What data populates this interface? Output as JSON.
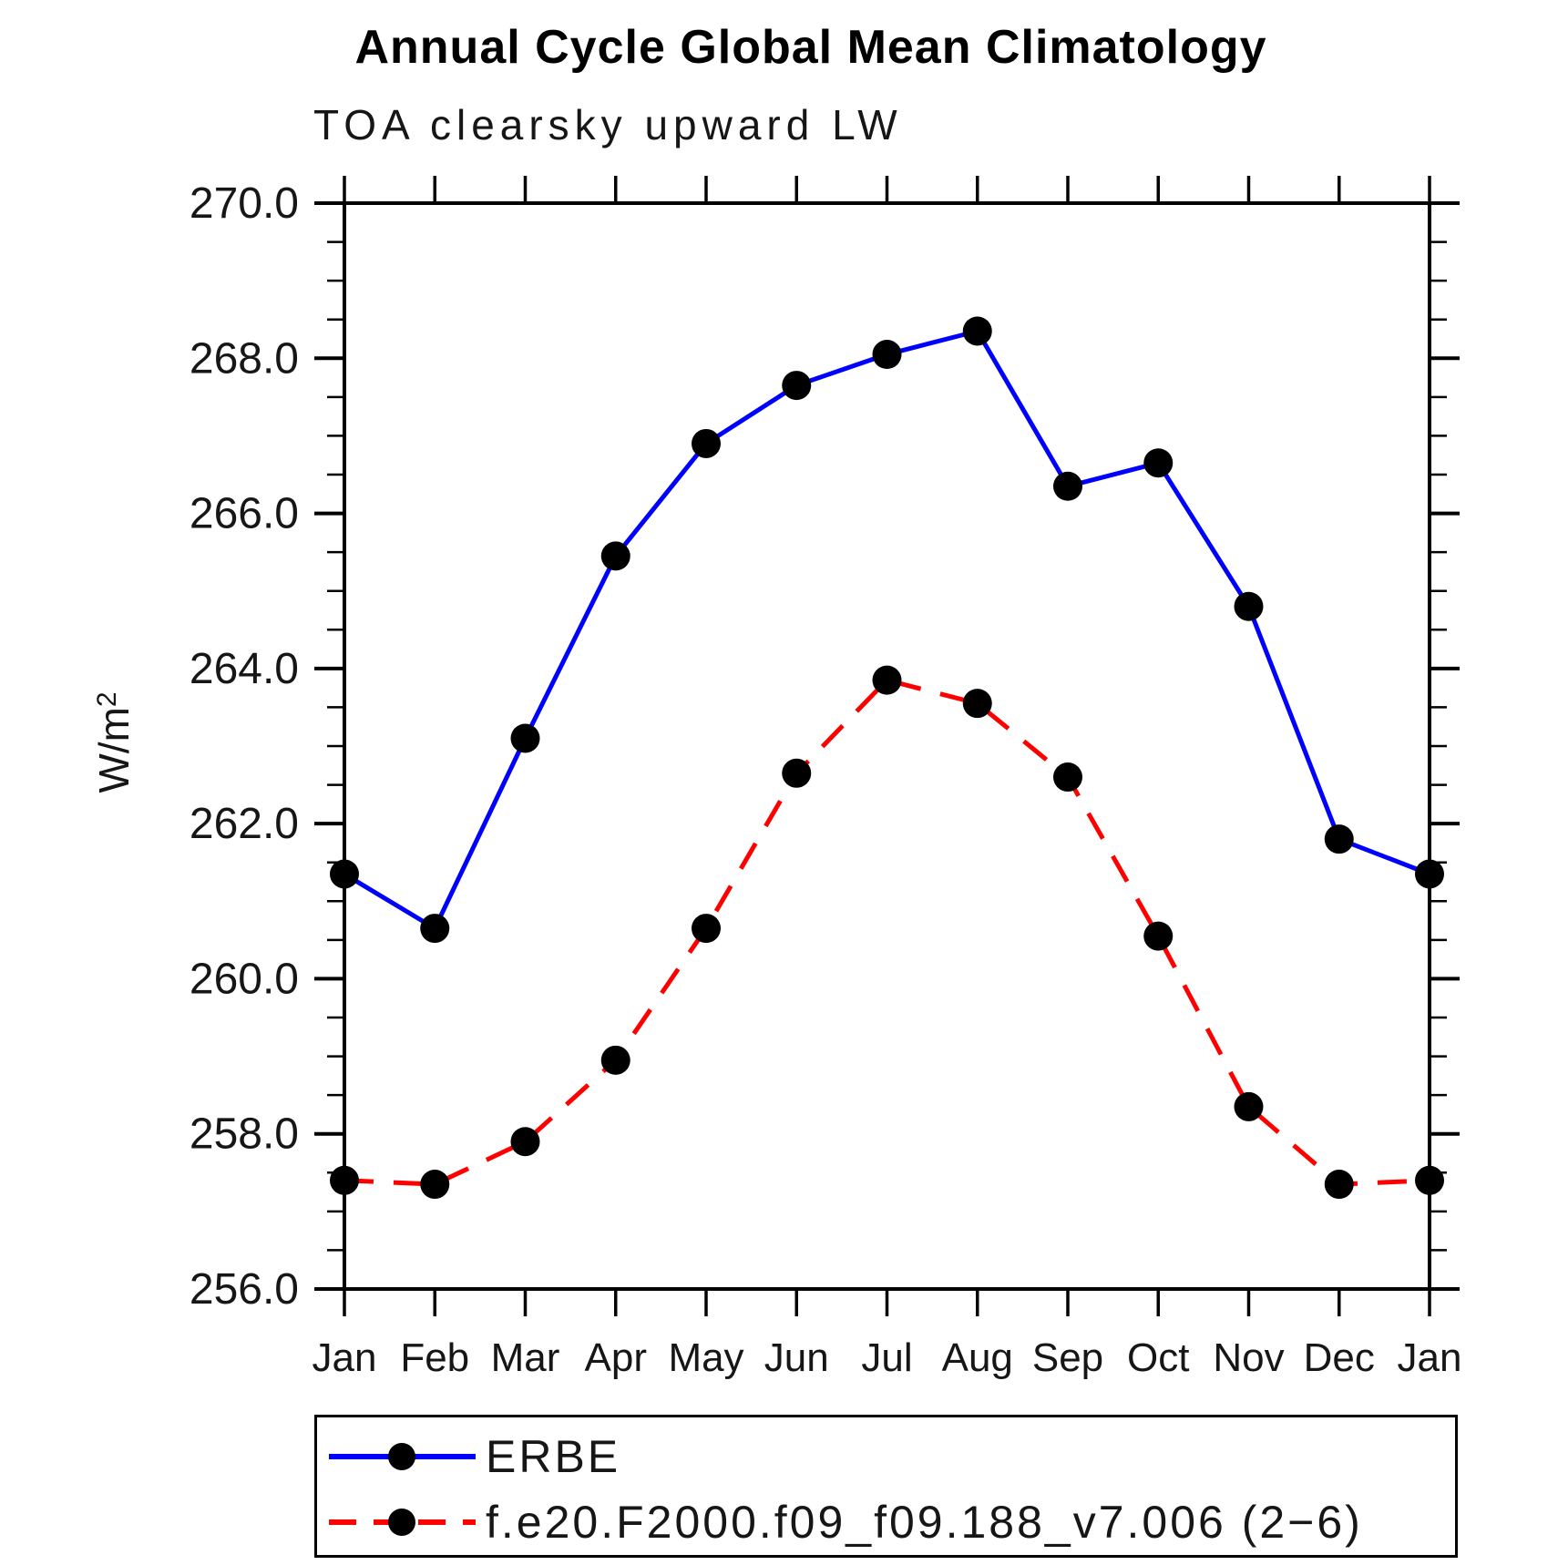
{
  "title": "Annual Cycle Global Mean Climatology",
  "subtitle": "TOA clearsky upward LW",
  "y_axis_title": {
    "base": "W/m",
    "exp": "2"
  },
  "legend": {
    "items": [
      {
        "label": "ERBE",
        "color": "#0000ff",
        "style": "solid"
      },
      {
        "label": "f.e20.F2000.f09_f09.188_v7.006 (2−6)",
        "color": "#ff0000",
        "style": "dashed"
      }
    ]
  },
  "marker_color": "#000000",
  "chart_data": {
    "type": "line",
    "title": "Annual Cycle Global Mean Climatology",
    "subtitle": "TOA clearsky upward LW",
    "xlabel": "",
    "ylabel": "W/m2",
    "categories": [
      "Jan",
      "Feb",
      "Mar",
      "Apr",
      "May",
      "Jun",
      "Jul",
      "Aug",
      "Sep",
      "Oct",
      "Nov",
      "Dec",
      "Jan"
    ],
    "series": [
      {
        "name": "ERBE",
        "color": "#0000ff",
        "style": "solid",
        "marker": "circle",
        "values": [
          261.35,
          260.65,
          263.1,
          265.45,
          266.9,
          267.65,
          268.05,
          268.35,
          266.35,
          266.65,
          264.8,
          261.8,
          261.35
        ]
      },
      {
        "name": "f.e20.F2000.f09_f09.188_v7.006 (2−6)",
        "color": "#ff0000",
        "style": "dashed",
        "marker": "circle",
        "values": [
          257.4,
          257.35,
          257.9,
          258.95,
          260.65,
          262.65,
          263.85,
          263.55,
          262.6,
          260.55,
          258.35,
          257.35,
          257.4
        ]
      }
    ],
    "ylim": [
      256.0,
      270.0
    ],
    "yticks": [
      256,
      258,
      260,
      262,
      264,
      266,
      268,
      270
    ],
    "ytick_labels": [
      "256.0",
      "258.0",
      "260.0",
      "262.0",
      "264.0",
      "266.0",
      "268.0",
      "270.0"
    ],
    "y_minor_step": 0.5,
    "grid": false,
    "legend_position": "bottom"
  }
}
